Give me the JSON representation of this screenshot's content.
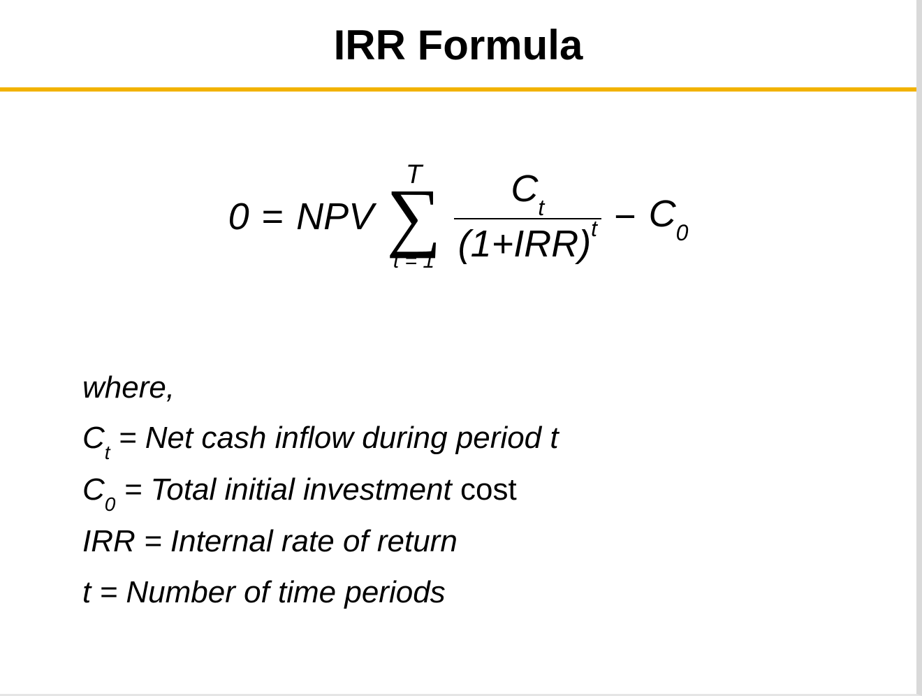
{
  "title": "IRR Formula",
  "title_fontsize": "60px",
  "rule_color": "#f2b200",
  "formula": {
    "lhs": "0",
    "eq": "=",
    "npv": "NPV",
    "sigma_upper": "T",
    "sigma_lower": "t = 1",
    "numerator_base": "C",
    "numerator_sub": "t",
    "denominator_open": "(1+IRR)",
    "denominator_sup": "t",
    "minus": "−",
    "tail_base": "C",
    "tail_sub": "0",
    "base_fontsize": "54px"
  },
  "definitions": {
    "where": "where,",
    "ct_sym_base": "C",
    "ct_sym_sub": "t",
    "ct_text": " = Net cash inflow during period t",
    "c0_sym_base": "C",
    "c0_sym_sub": "0",
    "c0_text_italic": " = Total initial investment ",
    "c0_text_plain": "cost",
    "irr_text": "IRR = Internal rate of return",
    "t_text": "t = Number of time periods",
    "fontsize": "44px"
  },
  "colors": {
    "text": "#000000",
    "background": "#ffffff"
  }
}
